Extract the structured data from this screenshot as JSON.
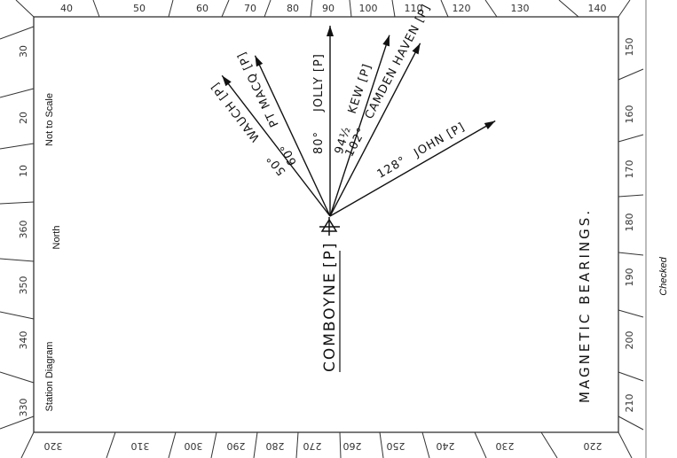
{
  "sheet": {
    "scale_note": "Not to Scale",
    "north_label": "North",
    "diagram_label": "Station Diagram",
    "checked_label": "Checked"
  },
  "station": {
    "name": "COMBOYNE",
    "mark": "[P]",
    "symbol": "4"
  },
  "title": "MAGNETIC BEARINGS.",
  "rays": [
    {
      "bearing": 50,
      "angle_label": "50°",
      "target": "WAUCH [P]"
    },
    {
      "bearing": 60,
      "angle_label": "60°",
      "target": "PT MACQ [P]"
    },
    {
      "bearing": 80,
      "angle_label": "80°",
      "target": "JOLLY [P]"
    },
    {
      "bearing": 94.5,
      "angle_label": "94½",
      "target": "KEW [P]"
    },
    {
      "bearing": 102,
      "angle_label": "102°",
      "target": "CAMDEN HAVEN [P]"
    },
    {
      "bearing": 128,
      "angle_label": "128°",
      "target": "JOHN [P]"
    }
  ],
  "scale_labels": {
    "top": [
      "40",
      "50",
      "60",
      "70",
      "80",
      "90",
      "100",
      "110",
      "120",
      "130",
      "140"
    ],
    "bottom": [
      "320",
      "310",
      "300",
      "290",
      "280",
      "270",
      "260",
      "250",
      "240",
      "230",
      "220"
    ],
    "left": [
      "30",
      "20",
      "10",
      "360",
      "350",
      "340",
      "330"
    ],
    "right": [
      "150",
      "160",
      "170",
      "180",
      "190",
      "200",
      "210"
    ]
  }
}
